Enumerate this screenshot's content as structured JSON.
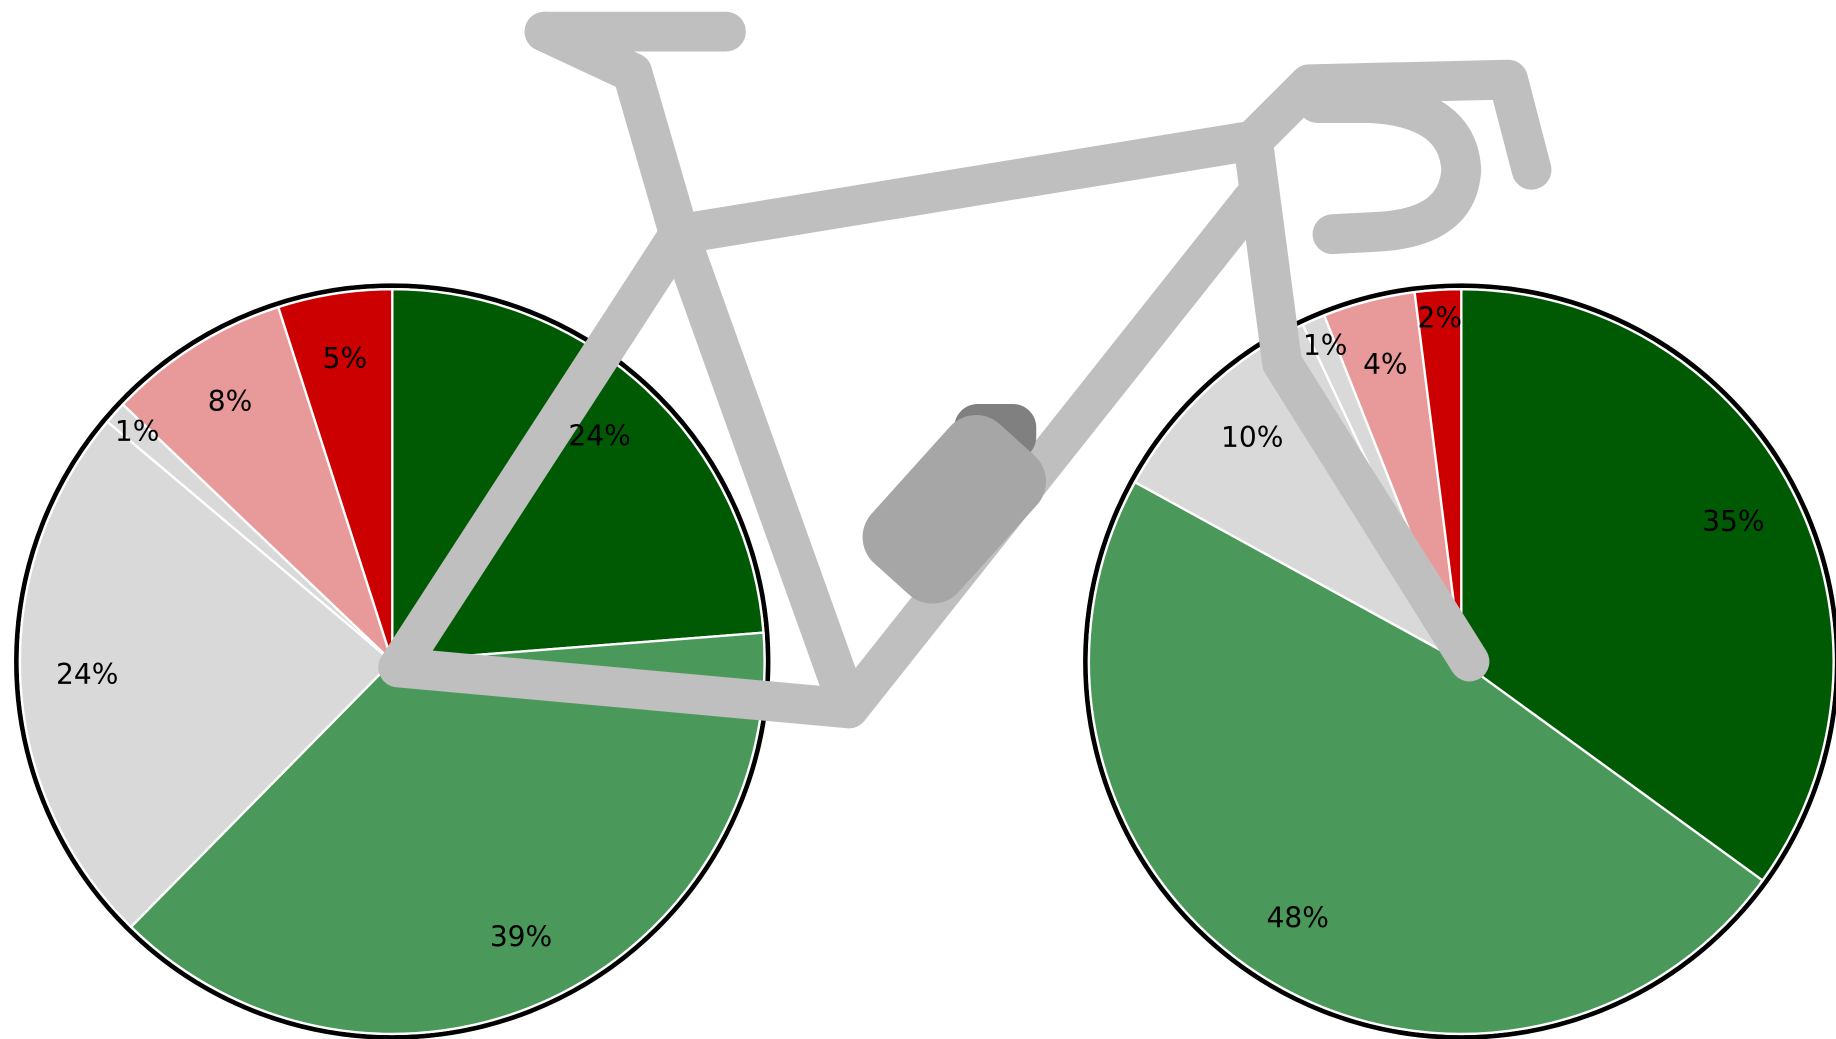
{
  "chart_data": [
    {
      "type": "pie",
      "values": [
        24,
        39,
        24,
        1,
        8,
        5
      ],
      "value_labels": [
        "24%",
        "39%",
        "24%",
        "1%",
        "8%",
        "5%"
      ],
      "colors": [
        "#005a04",
        "#4a985a",
        "#d9d9d9",
        "#d9d9d9",
        "#e89a9a",
        "#cc0000"
      ]
    },
    {
      "type": "pie",
      "values": [
        35,
        48,
        10,
        1,
        4,
        2
      ],
      "value_labels": [
        "35%",
        "48%",
        "10%",
        "1%",
        "4%",
        "2%"
      ],
      "colors": [
        "#005a04",
        "#4a985a",
        "#d9d9d9",
        "#d9d9d9",
        "#e89a9a",
        "#cc0000"
      ]
    }
  ]
}
